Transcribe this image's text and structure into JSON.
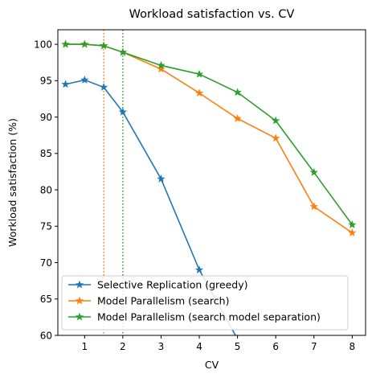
{
  "chart_data": {
    "type": "line",
    "title": "Workload satisfaction vs. CV",
    "xlabel": "CV",
    "ylabel": "Workload satisfaction (%)",
    "xlim": [
      0.3,
      8.35
    ],
    "ylim": [
      60,
      102
    ],
    "xticks": [
      1,
      2,
      3,
      4,
      5,
      6,
      7,
      8
    ],
    "yticks": [
      60,
      65,
      70,
      75,
      80,
      85,
      90,
      95,
      100
    ],
    "grid": false,
    "legend_position": "lower-left",
    "marker": "star",
    "series": [
      {
        "name": "Selective Replication (greedy)",
        "color": "#1f77b4",
        "x": [
          0.5,
          1,
          1.5,
          2,
          3,
          4,
          5
        ],
        "y": [
          94.5,
          95.1,
          94.1,
          90.7,
          81.5,
          69.0,
          59.5
        ]
      },
      {
        "name": "Model Parallelism (search)",
        "color": "#ff7f0e",
        "x": [
          0.5,
          1,
          1.5,
          2,
          3,
          4,
          5,
          6,
          7,
          8
        ],
        "y": [
          100.0,
          100.0,
          99.8,
          98.9,
          96.6,
          93.3,
          89.8,
          87.1,
          77.7,
          74.1
        ]
      },
      {
        "name": "Model Parallelism (search model separation)",
        "color": "#2ca02c",
        "x": [
          0.5,
          1,
          1.5,
          2,
          3,
          4,
          5,
          6,
          7,
          8
        ],
        "y": [
          100.0,
          100.0,
          99.8,
          98.9,
          97.1,
          95.9,
          93.4,
          89.5,
          82.4,
          75.2
        ]
      }
    ],
    "vertical_lines": [
      {
        "x": 1.5,
        "color": "#ff7f0e",
        "style": "dotted"
      },
      {
        "x": 2,
        "color": "#2ca02c",
        "style": "dotted"
      }
    ]
  }
}
